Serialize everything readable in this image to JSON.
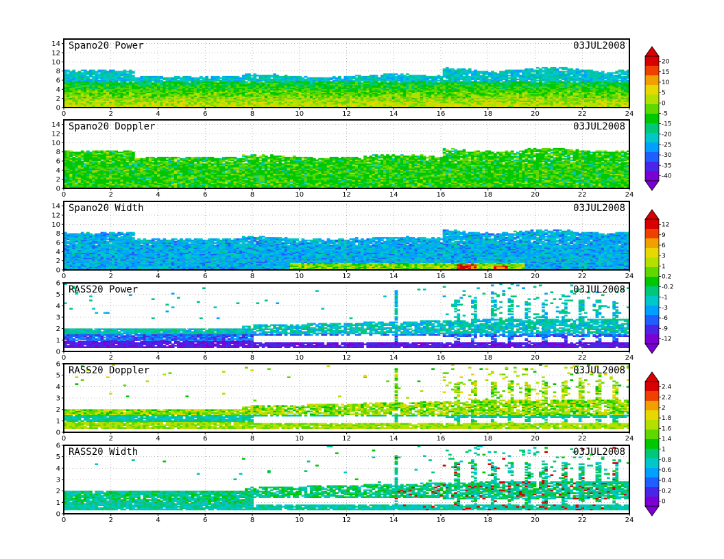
{
  "chart_data": [
    {
      "type": "heatmap",
      "title": "Spano20 Power",
      "date": "03JUL2008",
      "x_ticks": [
        "0",
        "2",
        "4",
        "6",
        "8",
        "10",
        "12",
        "14",
        "16",
        "18",
        "20",
        "22",
        "24"
      ],
      "y_ticks": [
        "0",
        "2",
        "4",
        "6",
        "8",
        "10",
        "12",
        "14"
      ],
      "xlim": [
        0,
        24
      ],
      "ylim": [
        0,
        15
      ],
      "profile": "power",
      "colorbar": {
        "labels": [
          "20",
          "15",
          "10",
          "5",
          "0",
          "-5",
          "-15",
          "-20",
          "-25",
          "-30",
          "-35",
          "-40"
        ],
        "shared_with_next": true
      },
      "grid": true
    },
    {
      "type": "heatmap",
      "title": "Spano20 Doppler",
      "date": "03JUL2008",
      "x_ticks": [
        "0",
        "2",
        "4",
        "6",
        "8",
        "10",
        "12",
        "14",
        "16",
        "18",
        "20",
        "22",
        "24"
      ],
      "y_ticks": [
        "0",
        "2",
        "4",
        "6",
        "8",
        "10",
        "12",
        "14"
      ],
      "xlim": [
        0,
        24
      ],
      "ylim": [
        0,
        15
      ],
      "profile": "doppler",
      "grid": true
    },
    {
      "type": "heatmap",
      "title": "Spano20 Width",
      "date": "03JUL2008",
      "x_ticks": [
        "0",
        "2",
        "4",
        "6",
        "8",
        "10",
        "12",
        "14",
        "16",
        "18",
        "20",
        "22",
        "24"
      ],
      "y_ticks": [
        "0",
        "2",
        "4",
        "6",
        "8",
        "10",
        "12",
        "14"
      ],
      "xlim": [
        0,
        24
      ],
      "ylim": [
        0,
        15
      ],
      "profile": "width",
      "colorbar": {
        "labels": [
          "12",
          "9",
          "6",
          "3",
          "1",
          "0.2",
          "-0.2",
          "-1",
          "-3",
          "-6",
          "-9",
          "-12"
        ],
        "shared_with_next": true
      },
      "grid": true
    },
    {
      "type": "heatmap",
      "title": "RASS20 Power",
      "date": "03JUL2008",
      "x_ticks": [
        "0",
        "2",
        "4",
        "6",
        "8",
        "10",
        "12",
        "14",
        "16",
        "18",
        "20",
        "22",
        "24"
      ],
      "y_ticks": [
        "0",
        "1",
        "2",
        "3",
        "4",
        "5",
        "6"
      ],
      "xlim": [
        0,
        24
      ],
      "ylim": [
        0,
        6
      ],
      "profile": "rpower",
      "grid": true
    },
    {
      "type": "heatmap",
      "title": "RASS20 Doppler",
      "date": "03JUL2008",
      "x_ticks": [
        "0",
        "2",
        "4",
        "6",
        "8",
        "10",
        "12",
        "14",
        "16",
        "18",
        "20",
        "22",
        "24"
      ],
      "y_ticks": [
        "0",
        "1",
        "2",
        "3",
        "4",
        "5",
        "6"
      ],
      "xlim": [
        0,
        24
      ],
      "ylim": [
        0,
        6
      ],
      "profile": "rdoppler",
      "colorbar": {
        "labels": [
          "2.4",
          "2.2",
          "2",
          "1.8",
          "1.6",
          "1.4",
          "1",
          "0.8",
          "0.6",
          "0.4",
          "0.2",
          "0"
        ],
        "shared_with_next": true
      },
      "grid": true
    },
    {
      "type": "heatmap",
      "title": "RASS20 Width",
      "date": "03JUL2008",
      "x_ticks": [
        "0",
        "2",
        "4",
        "6",
        "8",
        "10",
        "12",
        "14",
        "16",
        "18",
        "20",
        "22",
        "24"
      ],
      "y_ticks": [
        "0",
        "1",
        "2",
        "3",
        "4",
        "5",
        "6"
      ],
      "xlim": [
        0,
        24
      ],
      "ylim": [
        0,
        6
      ],
      "profile": "rwidth",
      "grid": true
    }
  ],
  "colors": [
    "#7b00d4",
    "#4a25e8",
    "#1f5fff",
    "#00a0ff",
    "#00c8c8",
    "#00c878",
    "#00c800",
    "#5fd800",
    "#b4e000",
    "#e6d800",
    "#f0a000",
    "#f04000",
    "#d80000"
  ]
}
